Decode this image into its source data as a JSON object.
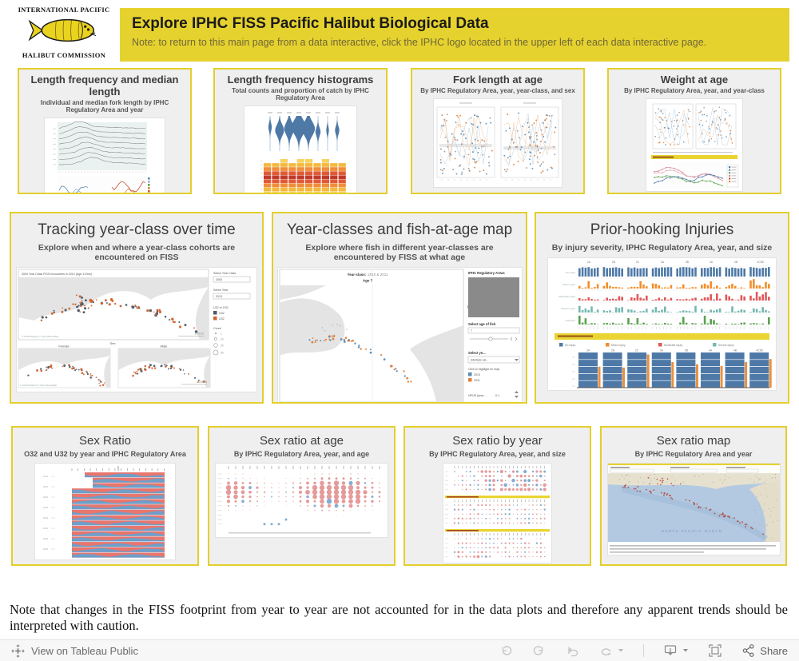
{
  "logo": {
    "line_top": "INTERNATIONAL PACIFIC",
    "line_bottom": "HALIBUT COMMISSION"
  },
  "banner": {
    "title": "Explore IPHC FISS Pacific Halibut Biological Data",
    "subtitle": "Note: to return to this main page from a data interactive, click the IPHC logo located in the upper left of each data interactive page."
  },
  "row1": [
    {
      "title": "Length frequency and median length",
      "subtitle": "Individual and median fork length by IPHC Regulatory Area and year"
    },
    {
      "title": "Length frequency histograms",
      "subtitle": "Total counts and proportion of catch by IPHC Regulatory Area"
    },
    {
      "title": "Fork length at age",
      "subtitle": "By IPHC Regulatory Area, year, year-class, and sex"
    },
    {
      "title": "Weight at age",
      "subtitle": "By IPHC Regulatory Area, year, and year-class"
    }
  ],
  "row2": [
    {
      "title": "Tracking year-class over time",
      "subtitle": "Explore when and where a year-class cohorts are encountered on FISS",
      "thumb": {
        "caption": "2000 Year Class FISS encounters in 2013 (Age 13 fish)",
        "attribution": "© 2019 Mapbox © OpenStreetMap",
        "scale": "1000 mi",
        "sex_label": "Sex",
        "female": "Female",
        "male": "Male",
        "select_year_class": "Select Year Class",
        "year_class_value": "2000",
        "select_year": "Select Year",
        "year_value": "2013",
        "legend_title": "U32 or O32",
        "legend": [
          "O32",
          "U32"
        ],
        "count_title": "Count",
        "count_values": [
          "1",
          "10",
          "20",
          "30"
        ]
      }
    },
    {
      "title": "Year-classes and fish-at-age map",
      "subtitle": "Explore where fish in different year-classes are encountered by FISS at what age",
      "thumb": {
        "map_label": "Year-class:",
        "map_value": "2010 & 2011",
        "age_label": "Age 7",
        "sidebar_title": "IPHC Regulatory Areas",
        "select_age": "Select age of fish",
        "age_value": "7",
        "select_year": "Select ye...",
        "select_year_value": "(Multiple val...",
        "click_hint": "Click to highlight on map",
        "years": [
          "2010",
          "2011"
        ],
        "npue_label": "NPUE (year...",
        "npue_value": "0-1"
      }
    },
    {
      "title": "Prior-hooking Injuries",
      "subtitle": "By injury severity, IPHC Regulatory Area, year, and size",
      "thumb": {
        "areas": [
          "2A",
          "2B",
          "2C",
          "3A",
          "3B",
          "4A",
          "4B",
          "4CDE"
        ],
        "severities": [
          "No injury",
          "Minor injury",
          "Moderate injury",
          "Severe injury",
          "Unknown"
        ],
        "legend": [
          "No injury",
          "Minor injury",
          "Moderate injury",
          "Severe injury"
        ],
        "bottom_areas": [
          "2A",
          "2B",
          "2C",
          "3A",
          "3B",
          "4A",
          "4B",
          "4CDE"
        ]
      }
    }
  ],
  "row3": [
    {
      "title": "Sex Ratio",
      "subtitle": "O32 and U32 by year and IPHC Regulatory Area"
    },
    {
      "title": "Sex ratio at age",
      "subtitle": "By IPHC Regulatory Area, year, and age"
    },
    {
      "title": "Sex ratio by year",
      "subtitle": "By IPHC Regulatory Area, year, and size"
    },
    {
      "title": "Sex ratio map",
      "subtitle": "By IPHC Regulatory Area and year",
      "thumb": {
        "ocean_label": "NORTH PACIFIC OCEAN"
      }
    }
  ],
  "note": {
    "text": "Note that changes in the FISS footprint from year to year are not accounted for in the data plots and therefore any apparent trends should be interpreted with caution."
  },
  "toolbar": {
    "view_on": "View on Tableau Public",
    "share": "Share"
  },
  "colors": {
    "accent_yellow": "#e6d22e",
    "blue": "#4e79a7",
    "orange": "#f28e2b",
    "red": "#e15759",
    "teal": "#76b7b2",
    "green": "#59a14f",
    "pink": "#e08a8a",
    "steel": "#6f9ec9"
  }
}
